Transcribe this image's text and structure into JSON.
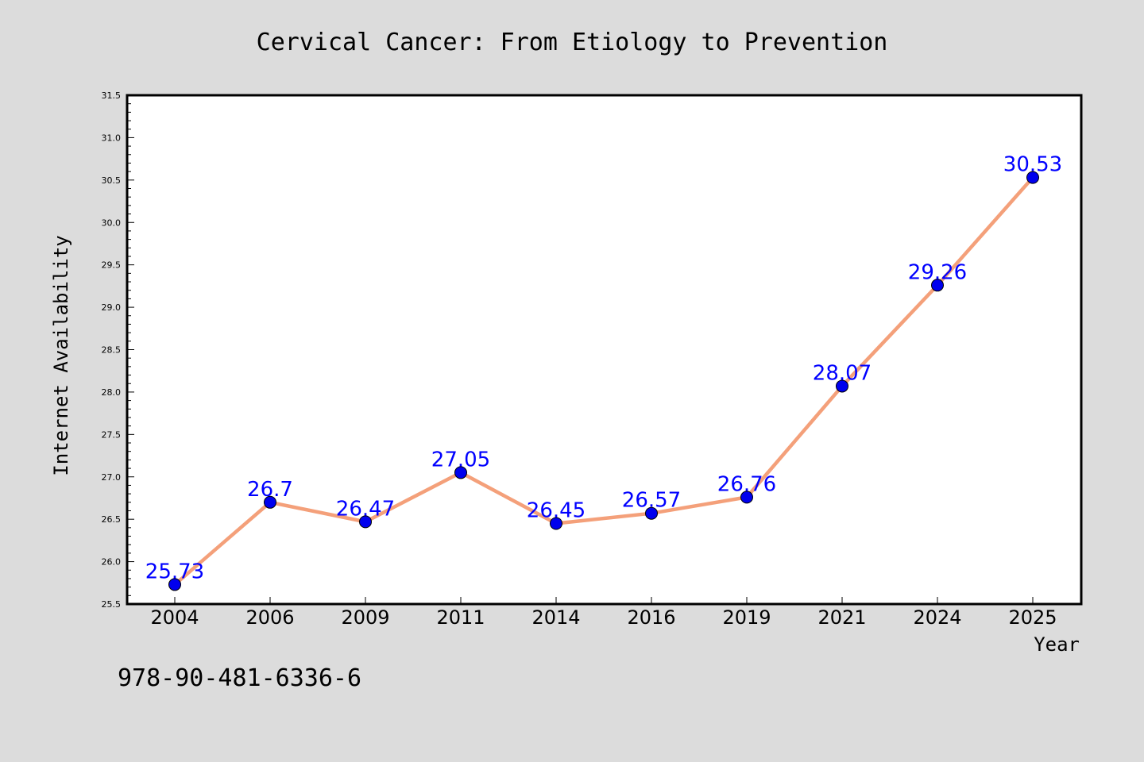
{
  "chart_data": {
    "type": "line",
    "title": "Cervical Cancer: From Etiology to Prevention",
    "xlabel": "Year",
    "ylabel": "Internet Availability",
    "categories": [
      "2004",
      "2006",
      "2009",
      "2011",
      "2014",
      "2016",
      "2019",
      "2021",
      "2024",
      "2025"
    ],
    "series": [
      {
        "values": [
          25.73,
          26.7,
          26.47,
          27.05,
          26.45,
          26.57,
          26.76,
          28.07,
          29.26,
          30.53
        ],
        "data_labels": [
          "25.73",
          "26.7",
          "26.47",
          "27.05",
          "26.45",
          "26.57",
          "26.76",
          "28.07",
          "29.26",
          "30.53"
        ],
        "line_color": "#f4a07a",
        "marker_color": "#0000ee",
        "label_color": "#0000ff"
      }
    ],
    "ylim": [
      25.5,
      31.5
    ],
    "yticks": [
      "25.5",
      "26.0",
      "26.5",
      "27.0",
      "27.5",
      "28.0",
      "28.5",
      "29.0",
      "29.5",
      "30.0",
      "30.5",
      "31.0",
      "31.5"
    ],
    "grid": false,
    "legend": "none"
  },
  "footer": {
    "code": "978-90-481-6336-6"
  },
  "colors": {
    "background": "#dcdcdc",
    "plot_background": "#ffffff"
  }
}
